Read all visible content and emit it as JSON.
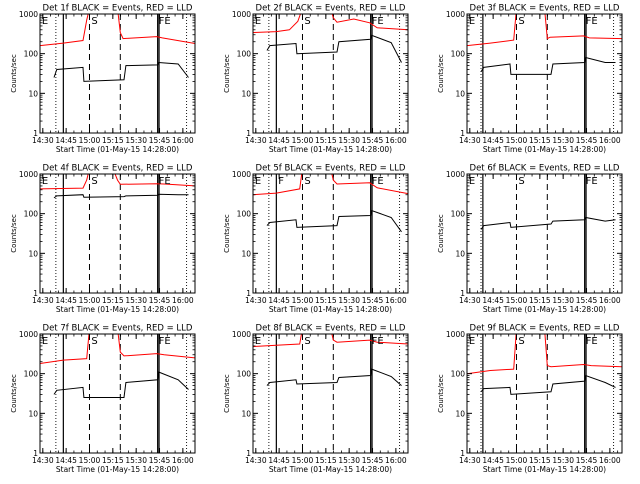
{
  "chart_data": [
    {
      "type": "line",
      "title": "Det 1f BLACK = Events, RED = LLD",
      "xlabel": "Start Time (01-May-15 14:28:00)",
      "ylabel": "Counts/sec",
      "ylog": true,
      "xlim": [
        14.47,
        16.13
      ],
      "ylim": [
        1,
        1000
      ],
      "x_ticks": [
        "14:30",
        "14:45",
        "15:00",
        "15:15",
        "15:30",
        "15:45",
        "16:00"
      ],
      "y_ticks": [
        "1",
        "10",
        "100",
        "1000"
      ],
      "vlines_solid": [
        14.72,
        15.73,
        15.745
      ],
      "vlines_dashed": [
        15.0,
        15.33
      ],
      "vlines_dotted": [
        14.64,
        16.04
      ],
      "markers": [
        {
          "text": "E",
          "x": 14.48
        },
        {
          "text": "S",
          "x": 15.01
        },
        {
          "text": "FE",
          "x": 15.73
        }
      ],
      "series": [
        {
          "name": "LLD",
          "color": "#ff0000",
          "x": [
            14.47,
            14.72,
            14.93,
            14.97,
            15.0,
            15.3,
            15.33,
            15.36,
            15.72,
            15.78,
            16.13
          ],
          "y": [
            160,
            185,
            215,
            700,
            1400,
            1400,
            340,
            240,
            270,
            250,
            180
          ]
        },
        {
          "name": "Events",
          "color": "#000000",
          "x": [
            14.62,
            14.65,
            14.93,
            14.94,
            15.37,
            15.39,
            15.73,
            15.74,
            15.95,
            16.06
          ],
          "y": [
            25,
            40,
            45,
            20,
            22,
            50,
            52,
            60,
            55,
            25
          ]
        }
      ]
    },
    {
      "type": "line",
      "title": "Det 2f BLACK = Events, RED = LLD",
      "xlabel": "Start Time (01-May-15 14:28:00)",
      "ylabel": "Counts/sec",
      "ylog": true,
      "xlim": [
        14.47,
        16.13
      ],
      "ylim": [
        1,
        1000
      ],
      "x_ticks": [
        "14:30",
        "14:45",
        "15:00",
        "15:15",
        "15:30",
        "15:45",
        "16:00"
      ],
      "y_ticks": [
        "1",
        "10",
        "100",
        "1000"
      ],
      "vlines_solid": [
        14.72,
        15.73,
        15.745
      ],
      "vlines_dashed": [
        15.0,
        15.33
      ],
      "vlines_dotted": [
        14.64,
        16.04
      ],
      "markers": [
        {
          "text": "E",
          "x": 14.48
        },
        {
          "text": "S",
          "x": 15.01
        },
        {
          "text": "FE",
          "x": 15.73
        }
      ],
      "series": [
        {
          "name": "LLD",
          "color": "#ff0000",
          "x": [
            14.47,
            14.72,
            14.86,
            14.95,
            15.0,
            15.3,
            15.33,
            15.37,
            15.55,
            15.72,
            15.8,
            16.13
          ],
          "y": [
            340,
            360,
            400,
            650,
            1400,
            1400,
            800,
            620,
            750,
            600,
            450,
            400
          ]
        },
        {
          "name": "Events",
          "color": "#000000",
          "x": [
            14.62,
            14.65,
            14.93,
            14.94,
            15.37,
            15.39,
            15.73,
            15.74,
            15.95,
            16.06
          ],
          "y": [
            120,
            160,
            180,
            100,
            110,
            200,
            230,
            290,
            190,
            60
          ]
        }
      ]
    },
    {
      "type": "line",
      "title": "Det 3f BLACK = Events, RED = LLD",
      "xlabel": "Start Time (01-May-15 14:28:00)",
      "ylabel": "Counts/sec",
      "ylog": true,
      "xlim": [
        14.47,
        16.13
      ],
      "ylim": [
        1,
        1000
      ],
      "x_ticks": [
        "14:30",
        "14:45",
        "15:00",
        "15:15",
        "15:30",
        "15:45",
        "16:00"
      ],
      "y_ticks": [
        "1",
        "10",
        "100",
        "1000"
      ],
      "vlines_solid": [
        14.64,
        15.73,
        15.745
      ],
      "vlines_dashed": [
        15.0,
        15.33
      ],
      "vlines_dotted": [
        14.62,
        16.04
      ],
      "markers": [
        {
          "text": "E",
          "x": 14.48
        },
        {
          "text": "S",
          "x": 15.01
        },
        {
          "text": "FE",
          "x": 15.73
        }
      ],
      "series": [
        {
          "name": "LLD",
          "color": "#ff0000",
          "x": [
            14.47,
            14.72,
            14.97,
            15.0,
            15.3,
            15.33,
            15.36,
            15.72,
            15.78,
            16.13
          ],
          "y": [
            160,
            185,
            220,
            1400,
            1400,
            240,
            260,
            280,
            250,
            240
          ]
        },
        {
          "name": "Events",
          "color": "#000000",
          "x": [
            14.62,
            14.65,
            14.93,
            14.94,
            15.37,
            15.39,
            15.73,
            15.74,
            15.95,
            16.06
          ],
          "y": [
            35,
            45,
            55,
            30,
            30,
            55,
            60,
            80,
            60,
            60
          ]
        }
      ]
    },
    {
      "type": "line",
      "title": "Det 4f BLACK = Events, RED = LLD",
      "xlabel": "Start Time (01-May-15 14:28:00)",
      "ylabel": "Counts/sec",
      "ylog": true,
      "xlim": [
        14.47,
        16.13
      ],
      "ylim": [
        1,
        1000
      ],
      "x_ticks": [
        "14:30",
        "14:45",
        "15:00",
        "15:15",
        "15:30",
        "15:45",
        "16:00"
      ],
      "y_ticks": [
        "1",
        "10",
        "100",
        "1000"
      ],
      "vlines_solid": [
        14.72,
        15.73,
        15.745
      ],
      "vlines_dashed": [
        15.0,
        15.33
      ],
      "vlines_dotted": [
        14.64,
        16.04
      ],
      "markers": [
        {
          "text": "E",
          "x": 14.48
        },
        {
          "text": "S",
          "x": 15.01
        },
        {
          "text": "FE",
          "x": 15.73
        }
      ],
      "series": [
        {
          "name": "LLD",
          "color": "#ff0000",
          "x": [
            14.47,
            14.93,
            14.97,
            15.0,
            15.2,
            15.25,
            15.3,
            15.33,
            15.72,
            15.8,
            16.13
          ],
          "y": [
            420,
            440,
            700,
            1400,
            1400,
            1400,
            700,
            550,
            570,
            560,
            500
          ]
        },
        {
          "name": "Events",
          "color": "#000000",
          "x": [
            14.62,
            14.65,
            14.93,
            14.94,
            15.37,
            15.39,
            15.73,
            15.74,
            15.95,
            16.06
          ],
          "y": [
            250,
            280,
            300,
            260,
            270,
            280,
            290,
            310,
            300,
            300
          ]
        }
      ]
    },
    {
      "type": "line",
      "title": "Det 5f BLACK = Events, RED = LLD",
      "xlabel": "Start Time (01-May-15 14:28:00)",
      "ylabel": "Counts/sec",
      "ylog": true,
      "xlim": [
        14.47,
        16.13
      ],
      "ylim": [
        1,
        1000
      ],
      "x_ticks": [
        "14:30",
        "14:45",
        "15:00",
        "15:15",
        "15:30",
        "15:45",
        "16:00"
      ],
      "y_ticks": [
        "1",
        "10",
        "100",
        "1000"
      ],
      "vlines_solid": [
        14.72,
        15.73,
        15.745
      ],
      "vlines_dashed": [
        15.0,
        15.33
      ],
      "vlines_dotted": [
        14.64,
        16.04
      ],
      "markers": [
        {
          "text": "E",
          "x": 14.48
        },
        {
          "text": "F",
          "x": 14.73
        },
        {
          "text": "S",
          "x": 15.01
        },
        {
          "text": "FE",
          "x": 15.73
        }
      ],
      "series": [
        {
          "name": "LLD",
          "color": "#ff0000",
          "x": [
            14.47,
            14.72,
            14.97,
            15.0,
            15.3,
            15.33,
            15.37,
            15.72,
            15.8,
            16.13
          ],
          "y": [
            300,
            330,
            420,
            1400,
            1400,
            700,
            560,
            600,
            450,
            320
          ]
        },
        {
          "name": "Events",
          "color": "#000000",
          "x": [
            14.62,
            14.65,
            14.93,
            14.94,
            15.37,
            15.39,
            15.73,
            15.74,
            15.95,
            16.06
          ],
          "y": [
            50,
            60,
            70,
            45,
            50,
            85,
            90,
            120,
            80,
            35
          ]
        }
      ]
    },
    {
      "type": "line",
      "title": "Det 6f BLACK = Events, RED = LLD",
      "xlabel": "Start Time (01-May-15 14:28:00)",
      "ylabel": "Counts/sec",
      "ylog": true,
      "xlim": [
        14.47,
        16.13
      ],
      "ylim": [
        1,
        1000
      ],
      "x_ticks": [
        "14:30",
        "14:45",
        "15:00",
        "15:15",
        "15:30",
        "15:45",
        "16:00"
      ],
      "y_ticks": [
        "1",
        "10",
        "100",
        "1000"
      ],
      "vlines_solid": [
        14.64,
        15.73,
        15.745
      ],
      "vlines_dashed": [
        15.0,
        15.33
      ],
      "vlines_dotted": [
        14.62,
        16.04
      ],
      "markers": [
        {
          "text": "E",
          "x": 14.48
        },
        {
          "text": "S",
          "x": 15.01
        },
        {
          "text": "FE",
          "x": 15.73
        }
      ],
      "series": [
        {
          "name": "Events",
          "color": "#000000",
          "x": [
            14.62,
            14.65,
            14.93,
            14.94,
            15.37,
            15.39,
            15.73,
            15.74,
            15.95,
            16.06
          ],
          "y": [
            40,
            50,
            60,
            45,
            55,
            65,
            70,
            80,
            65,
            70
          ]
        }
      ]
    },
    {
      "type": "line",
      "title": "Det 7f BLACK = Events, RED = LLD",
      "xlabel": "Start Time (01-May-15 14:28:00)",
      "ylabel": "Counts/sec",
      "ylog": true,
      "xlim": [
        14.47,
        16.13
      ],
      "ylim": [
        1,
        1000
      ],
      "x_ticks": [
        "14:30",
        "14:45",
        "15:00",
        "15:15",
        "15:30",
        "15:45",
        "16:00"
      ],
      "y_ticks": [
        "1",
        "10",
        "100",
        "1000"
      ],
      "vlines_solid": [
        14.72,
        15.73,
        15.745
      ],
      "vlines_dashed": [
        15.0,
        15.33
      ],
      "vlines_dotted": [
        14.64,
        16.04
      ],
      "markers": [
        {
          "text": "E",
          "x": 14.48
        },
        {
          "text": "S",
          "x": 15.01
        },
        {
          "text": "FE",
          "x": 15.73
        }
      ],
      "series": [
        {
          "name": "LLD",
          "color": "#ff0000",
          "x": [
            14.47,
            14.72,
            14.97,
            15.0,
            15.3,
            15.33,
            15.37,
            15.72,
            15.8,
            16.13
          ],
          "y": [
            180,
            220,
            240,
            1400,
            1400,
            350,
            280,
            320,
            300,
            250
          ]
        },
        {
          "name": "Events",
          "color": "#000000",
          "x": [
            14.62,
            14.65,
            14.93,
            14.94,
            15.37,
            15.39,
            15.73,
            15.74,
            15.95,
            16.06
          ],
          "y": [
            30,
            38,
            45,
            25,
            25,
            60,
            70,
            110,
            70,
            40
          ]
        }
      ]
    },
    {
      "type": "line",
      "title": "Det 8f BLACK = Events, RED = LLD",
      "xlabel": "Start Time (01-May-15 14:28:00)",
      "ylabel": "Counts/sec",
      "ylog": true,
      "xlim": [
        14.47,
        16.13
      ],
      "ylim": [
        1,
        1000
      ],
      "x_ticks": [
        "14:30",
        "14:45",
        "15:00",
        "15:15",
        "15:30",
        "15:45",
        "16:00"
      ],
      "y_ticks": [
        "1",
        "10",
        "100",
        "1000"
      ],
      "vlines_solid": [
        14.72,
        15.73,
        15.745
      ],
      "vlines_dashed": [
        15.0,
        15.33
      ],
      "vlines_dotted": [
        14.64,
        16.04
      ],
      "markers": [
        {
          "text": "E",
          "x": 14.48
        },
        {
          "text": "S",
          "x": 15.01
        },
        {
          "text": "FE",
          "x": 15.73
        }
      ],
      "series": [
        {
          "name": "LLD",
          "color": "#ff0000",
          "x": [
            14.47,
            14.72,
            14.97,
            15.0,
            15.3,
            15.33,
            15.37,
            15.72,
            15.8,
            16.13
          ],
          "y": [
            480,
            520,
            560,
            1400,
            1400,
            700,
            620,
            700,
            620,
            560
          ]
        },
        {
          "name": "Events",
          "color": "#000000",
          "x": [
            14.62,
            14.65,
            14.93,
            14.94,
            15.37,
            15.39,
            15.73,
            15.74,
            15.95,
            16.06
          ],
          "y": [
            50,
            60,
            70,
            55,
            60,
            80,
            90,
            130,
            85,
            50
          ]
        }
      ]
    },
    {
      "type": "line",
      "title": "Det 9f BLACK = Events, RED = LLD",
      "xlabel": "Start Time (01-May-15 14:28:00)",
      "ylabel": "Counts/sec",
      "ylog": true,
      "xlim": [
        14.47,
        16.13
      ],
      "ylim": [
        1,
        1000
      ],
      "x_ticks": [
        "14:30",
        "14:45",
        "15:00",
        "15:15",
        "15:30",
        "15:45",
        "16:00"
      ],
      "y_ticks": [
        "1",
        "10",
        "100",
        "1000"
      ],
      "vlines_solid": [
        14.64,
        15.73,
        15.745
      ],
      "vlines_dashed": [
        15.0,
        15.33
      ],
      "vlines_dotted": [
        14.62,
        16.04
      ],
      "markers": [
        {
          "text": "E",
          "x": 14.48
        },
        {
          "text": "S",
          "x": 15.01
        },
        {
          "text": "FE",
          "x": 15.73
        }
      ],
      "series": [
        {
          "name": "LLD",
          "color": "#ff0000",
          "x": [
            14.47,
            14.72,
            14.97,
            15.0,
            15.3,
            15.33,
            15.37,
            15.72,
            15.8,
            16.13
          ],
          "y": [
            100,
            120,
            130,
            1400,
            1400,
            160,
            150,
            170,
            160,
            150
          ]
        },
        {
          "name": "Events",
          "color": "#000000",
          "x": [
            14.62,
            14.65,
            14.93,
            14.94,
            15.37,
            15.39,
            15.73,
            15.74,
            15.95,
            16.06
          ],
          "y": [
            35,
            42,
            45,
            30,
            35,
            55,
            65,
            90,
            60,
            45
          ]
        }
      ]
    }
  ]
}
